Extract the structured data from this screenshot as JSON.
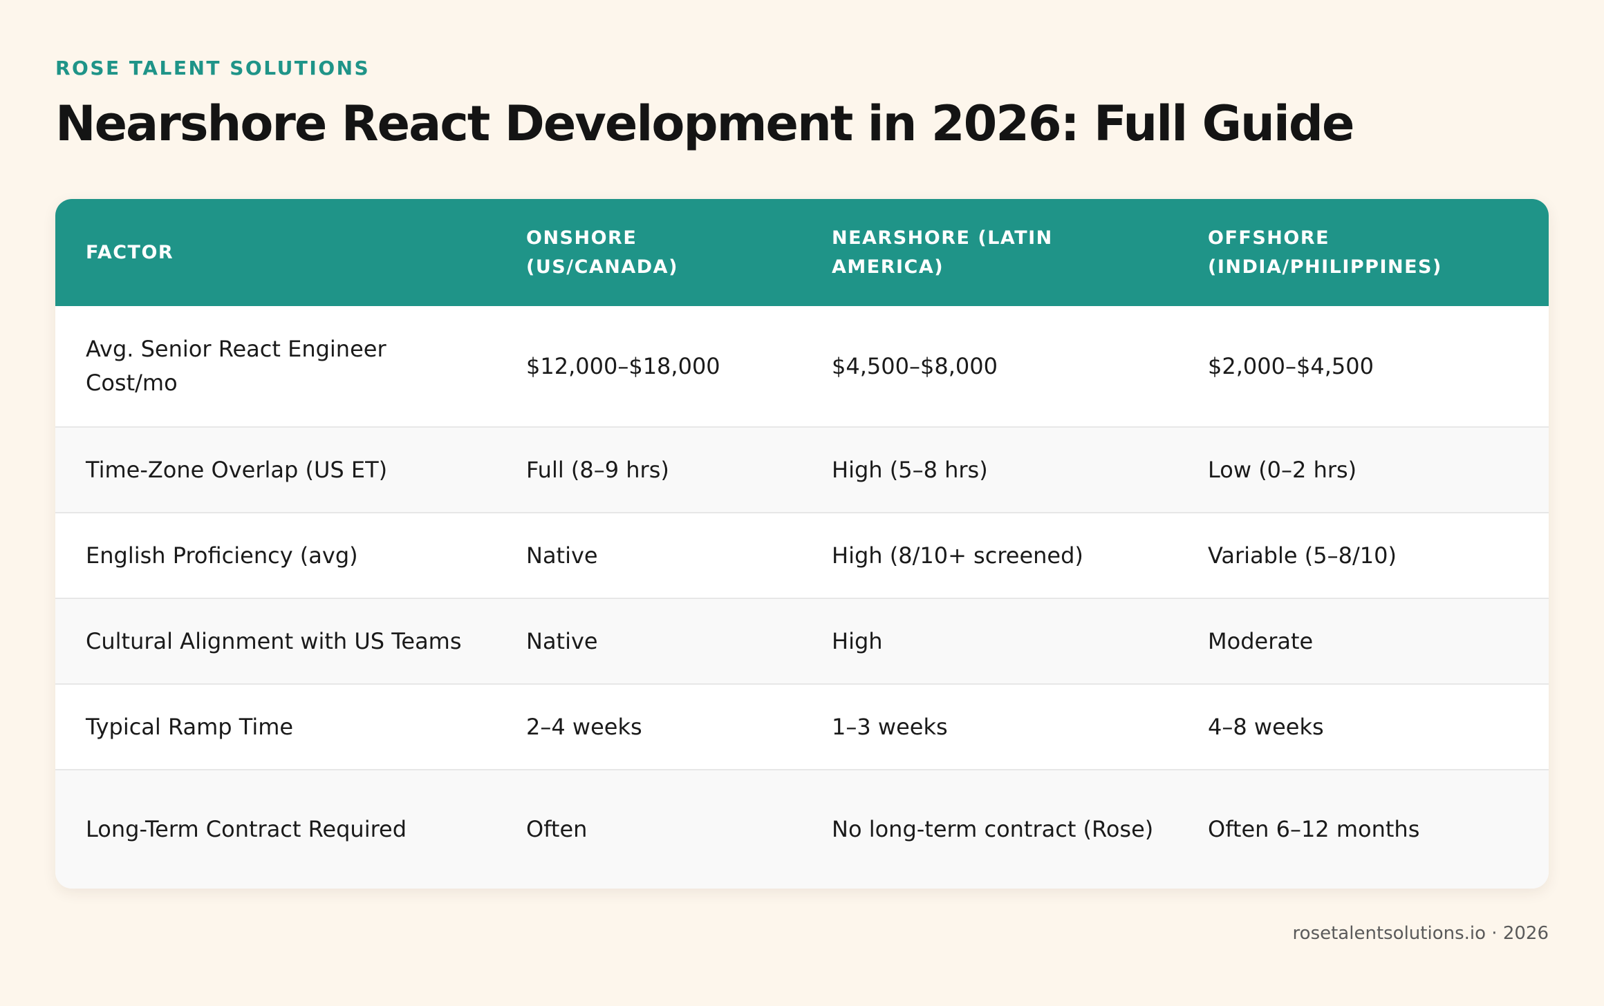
{
  "header": {
    "brand": "ROSE TALENT SOLUTIONS",
    "title": "Nearshore React Development in 2026: Full Guide"
  },
  "table": {
    "columns": [
      "FACTOR",
      "ONSHORE (US/CANADA)",
      "NEARSHORE (LATIN AMERICA)",
      "OFFSHORE (INDIA/PHILIPPINES)"
    ],
    "rows": [
      [
        "Avg. Senior React Engineer Cost/mo",
        "$12,000–$18,000",
        "$4,500–$8,000",
        "$2,000–$4,500"
      ],
      [
        "Time-Zone Overlap (US ET)",
        "Full (8–9 hrs)",
        "High (5–8 hrs)",
        "Low (0–2 hrs)"
      ],
      [
        "English Proficiency (avg)",
        "Native",
        "High (8/10+ screened)",
        "Variable (5–8/10)"
      ],
      [
        "Cultural Alignment with US Teams",
        "Native",
        "High",
        "Moderate"
      ],
      [
        "Typical Ramp Time",
        "2–4 weeks",
        "1–3 weeks",
        "4–8 weeks"
      ],
      [
        "Long-Term Contract Required",
        "Often",
        "No long-term contract (Rose)",
        "Often 6–12 months"
      ]
    ]
  },
  "footer": {
    "text": "rosetalentsolutions.io · 2026"
  },
  "colors": {
    "background": "#fdf6ec",
    "accent": "#1f9488",
    "header_text": "#ffffff",
    "body_text": "#1a1a1a",
    "row_alt": "#f9f9f9"
  }
}
